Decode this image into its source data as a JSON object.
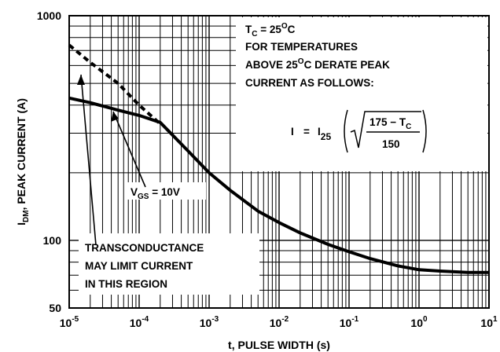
{
  "chart_data": {
    "type": "line",
    "xlabel": "t, PULSE WIDTH (s)",
    "ylabel": "I_DM, PEAK CURRENT (A)",
    "ylabel_parts": {
      "main": "I",
      "sub": "DM",
      "rest": ", PEAK CURRENT (A)"
    },
    "x_scale": "log",
    "y_scale": "log",
    "xlim": [
      1e-05,
      10
    ],
    "ylim": [
      50,
      1000
    ],
    "grid": true,
    "x_ticks": [
      {
        "base": "10",
        "exp": "-5"
      },
      {
        "base": "10",
        "exp": "-4"
      },
      {
        "base": "10",
        "exp": "-3"
      },
      {
        "base": "10",
        "exp": "-2"
      },
      {
        "base": "10",
        "exp": "-1"
      },
      {
        "base": "10",
        "exp": "0"
      },
      {
        "base": "10",
        "exp": "1"
      }
    ],
    "y_ticks": [
      "50",
      "100",
      "1000"
    ],
    "series": [
      {
        "style": "solid",
        "label": {
          "main": "V",
          "sub": "GS",
          "rest": " = 10V"
        },
        "x": [
          1e-05,
          2e-05,
          5e-05,
          0.0001,
          0.0002,
          0.0005,
          0.001,
          0.002,
          0.005,
          0.01,
          0.02,
          0.05,
          0.1,
          0.2,
          0.5,
          1,
          2,
          5,
          10
        ],
        "y": [
          430,
          410,
          380,
          360,
          335,
          250,
          200,
          167,
          135,
          120,
          108,
          96,
          89,
          83,
          77,
          74,
          73,
          72,
          72
        ]
      },
      {
        "style": "dashed",
        "x": [
          1e-05,
          2e-05,
          5e-05,
          0.0001,
          0.0002
        ],
        "y": [
          740,
          620,
          500,
          400,
          330
        ]
      }
    ],
    "annotations": {
      "conditions": {
        "line1": {
          "main": "T",
          "sub": "C",
          "rest1": " = 25",
          "sup": "O",
          "rest2": "C"
        },
        "line2": "FOR TEMPERATURES",
        "line3": {
          "pre": "ABOVE 25",
          "sup": "O",
          "post": "C DERATE PEAK"
        },
        "line4": "CURRENT AS FOLLOWS:"
      },
      "formula": {
        "lhs": "I",
        "eq": "=",
        "i25_main": "I",
        "i25_sub": "25",
        "numerator": "175 − T",
        "numerator_sub": "C",
        "denominator": "150"
      },
      "transconductance": [
        "TRANSCONDUCTANCE",
        "MAY LIMIT CURRENT",
        "IN THIS REGION"
      ]
    }
  }
}
